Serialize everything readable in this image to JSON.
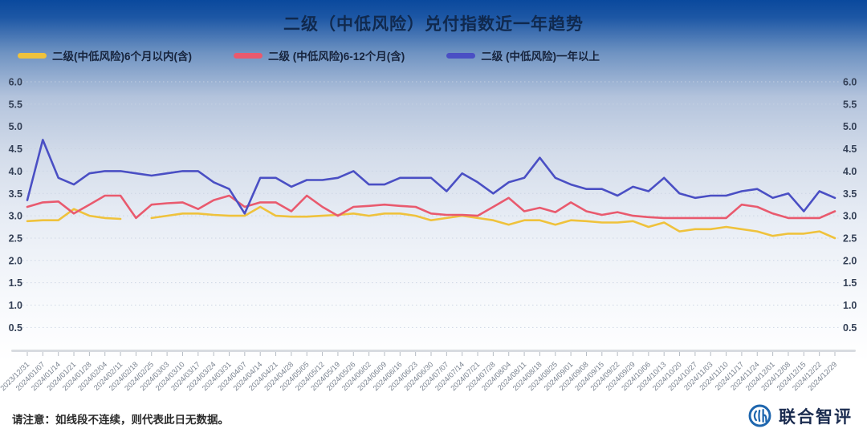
{
  "page": {
    "title": "二级（中低风险）兑付指数近一年趋势",
    "footer_note": "请注意：如线段不连续，则代表此日无数据。",
    "brand": {
      "name": "联合智评",
      "logo_color": "#1E66AE",
      "text_color": "#1B2C50"
    }
  },
  "colors": {
    "background_top": "#0A499D",
    "axis_label_text": "#333F55",
    "xtick_text": "#79828F",
    "gridline": "#C9D3E2",
    "axis_bar": "#D8DBE0"
  },
  "chart_data": {
    "type": "line",
    "title": "二级（中低风险）兑付指数近一年趋势",
    "grid": true,
    "legend_position": "top-left",
    "ylim": [
      0.5,
      6.0
    ],
    "yticks": [
      "6.0",
      "5.5",
      "5.0",
      "4.5",
      "4.0",
      "3.5",
      "3.0",
      "2.5",
      "2.0",
      "1.5",
      "1.0",
      "0.5"
    ],
    "y_axis_sides": "both",
    "x": [
      "2023/12/31",
      "2024/01/07",
      "2024/01/14",
      "2024/01/21",
      "2024/01/28",
      "2024/02/04",
      "2024/02/11",
      "2024/02/18",
      "2024/02/25",
      "2024/03/03",
      "2024/03/10",
      "2024/03/17",
      "2024/03/24",
      "2024/03/31",
      "2024/04/07",
      "2024/04/14",
      "2024/04/21",
      "2024/04/28",
      "2024/05/05",
      "2024/05/12",
      "2024/05/19",
      "2024/05/26",
      "2024/06/02",
      "2024/06/09",
      "2024/06/16",
      "2024/06/23",
      "2024/06/30",
      "2024/07/07",
      "2024/07/14",
      "2024/07/21",
      "2024/07/28",
      "2024/08/04",
      "2024/08/11",
      "2024/08/18",
      "2024/08/25",
      "2024/09/01",
      "2024/09/08",
      "2024/09/15",
      "2024/09/22",
      "2024/09/29",
      "2024/10/06",
      "2024/10/13",
      "2024/10/20",
      "2024/10/27",
      "2024/11/03",
      "2024/11/10",
      "2024/11/17",
      "2024/11/24",
      "2024/12/01",
      "2024/12/08",
      "2024/12/15",
      "2024/12/22",
      "2024/12/29"
    ],
    "series": [
      {
        "name": "二级(中低风险)6个月以内(含)",
        "color": "#EFC23C",
        "values": [
          2.88,
          2.9,
          2.9,
          3.15,
          3.0,
          2.95,
          2.93,
          null,
          2.95,
          3.0,
          3.05,
          3.05,
          3.02,
          3.0,
          3.0,
          3.2,
          3.0,
          2.98,
          2.98,
          3.0,
          3.02,
          3.05,
          3.0,
          3.05,
          3.05,
          3.0,
          2.9,
          2.95,
          3.0,
          2.95,
          2.9,
          2.8,
          2.9,
          2.9,
          2.8,
          2.9,
          2.88,
          2.85,
          2.85,
          2.88,
          2.75,
          2.85,
          2.65,
          2.7,
          2.7,
          2.75,
          2.7,
          2.65,
          2.55,
          2.6,
          2.6,
          2.65,
          2.5
        ]
      },
      {
        "name": "二级 (中低风险)6-12个月(含)",
        "color": "#E95A6E",
        "values": [
          3.2,
          3.3,
          3.32,
          3.05,
          3.25,
          3.45,
          3.45,
          2.95,
          3.25,
          3.28,
          3.3,
          3.15,
          3.35,
          3.45,
          3.2,
          3.3,
          3.3,
          3.1,
          3.45,
          3.2,
          3.0,
          3.2,
          3.22,
          3.25,
          3.22,
          3.2,
          3.05,
          3.02,
          3.02,
          3.0,
          3.2,
          3.4,
          3.1,
          3.18,
          3.08,
          3.3,
          3.1,
          3.02,
          3.08,
          3.0,
          2.97,
          2.95,
          2.95,
          2.95,
          2.95,
          2.95,
          3.25,
          3.2,
          3.05,
          2.95,
          2.95,
          2.95,
          3.1
        ]
      },
      {
        "name": "二级 (中低风险)一年以上",
        "color": "#4A4FC4",
        "values": [
          3.35,
          4.7,
          3.85,
          3.7,
          3.95,
          4.0,
          4.0,
          3.95,
          3.9,
          3.95,
          4.0,
          4.0,
          3.75,
          3.6,
          3.05,
          3.85,
          3.85,
          3.65,
          3.8,
          3.8,
          3.85,
          4.0,
          3.7,
          3.7,
          3.85,
          3.85,
          3.85,
          3.55,
          3.95,
          3.75,
          3.5,
          3.75,
          3.85,
          4.3,
          3.85,
          3.7,
          3.6,
          3.6,
          3.45,
          3.65,
          3.55,
          3.85,
          3.5,
          3.4,
          3.45,
          3.45,
          3.55,
          3.6,
          3.4,
          3.5,
          3.1,
          3.55,
          3.4
        ]
      }
    ]
  }
}
